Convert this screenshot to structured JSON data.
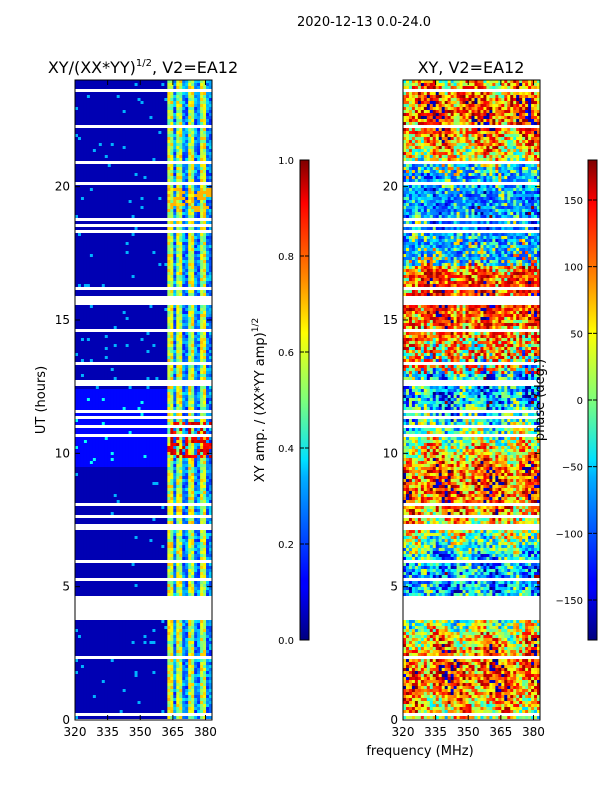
{
  "figure": {
    "suptitle": "2020-12-13 0.0-24.0",
    "xlabel": "frequency (MHz)"
  },
  "chart_data": [
    {
      "type": "heatmap",
      "title": "XY/(XX*YY)",
      "title_sup": "1/2",
      "title_suffix": ", V2=EA12",
      "xlabel": "",
      "ylabel": "UT (hours)",
      "xlim": [
        320,
        383
      ],
      "ylim": [
        0,
        24
      ],
      "xticks": [
        "320",
        "335",
        "350",
        "365",
        "380"
      ],
      "yticks": [
        "0",
        "5",
        "10",
        "15",
        "20"
      ],
      "colorbar": {
        "label": "XY amp. / (XX*YY amp)",
        "label_sup": "1/2",
        "vmin": 0.0,
        "vmax": 1.0,
        "ticks": [
          "0.0",
          "0.2",
          "0.4",
          "0.6",
          "0.8",
          "1.0"
        ]
      }
    },
    {
      "type": "heatmap",
      "title": "XY, V2=EA12",
      "xlabel": "",
      "ylabel": "",
      "xlim": [
        320,
        383
      ],
      "ylim": [
        0,
        24
      ],
      "xticks": [
        "320",
        "335",
        "350",
        "365",
        "380"
      ],
      "yticks": [
        "0",
        "5",
        "10",
        "15",
        "20"
      ],
      "colorbar": {
        "label": "phase (deg.)",
        "vmin": -180,
        "vmax": 180,
        "ticks": [
          "−150",
          "−100",
          "−50",
          "0",
          "50",
          "100",
          "150"
        ]
      }
    }
  ]
}
